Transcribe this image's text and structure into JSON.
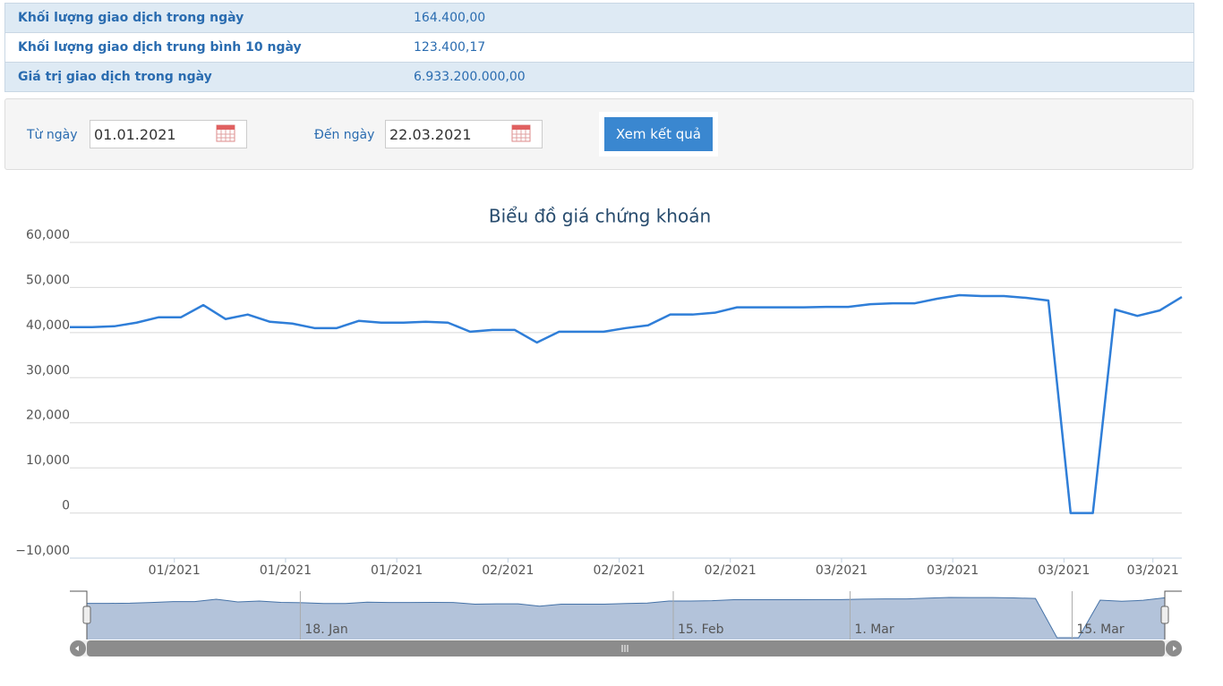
{
  "table": {
    "rows": [
      [
        "Khối lượng giao dịch trong ngày",
        "164.400,00"
      ],
      [
        "Khối lượng giao dịch trung bình 10 ngày",
        "123.400,17"
      ],
      [
        "Giá trị giao dịch trong ngày",
        "6.933.200.000,00"
      ]
    ]
  },
  "form": {
    "from_label": "Từ ngày",
    "from_value": "01.01.2021",
    "to_label": "Đến ngày",
    "to_value": "22.03.2021",
    "button": "Xem kết quả"
  },
  "chart_data": {
    "type": "line",
    "title": "Biểu đồ giá chứng khoán",
    "categories": [
      null,
      null,
      null,
      null,
      null,
      null,
      null,
      null,
      null,
      null,
      null,
      null,
      null,
      null,
      null,
      null,
      null,
      null,
      null,
      null,
      null,
      null,
      null,
      null,
      null,
      null,
      null,
      null,
      null,
      null,
      null,
      null,
      null,
      null,
      null,
      null,
      null,
      null,
      null,
      null,
      null,
      null,
      null,
      null,
      null,
      null,
      null,
      null,
      null,
      null,
      null
    ],
    "series": [
      {
        "color": "#2f7ed8",
        "values": [
          41200,
          41200,
          41400,
          42200,
          43400,
          43400,
          46100,
          43000,
          44000,
          42400,
          42000,
          41000,
          41000,
          42600,
          42200,
          42200,
          42400,
          42200,
          40200,
          40600,
          40600,
          37800,
          40200,
          40200,
          40200,
          41000,
          41600,
          44000,
          44000,
          44400,
          45600,
          45600,
          45600,
          45600,
          45700,
          45700,
          46300,
          46500,
          46500,
          47500,
          48300,
          48100,
          48100,
          47700,
          47100,
          0,
          0,
          45100,
          43700,
          44900,
          47900
        ]
      }
    ],
    "ylim": [
      -10000,
      60000
    ],
    "yticks": [
      {
        "value": -10000,
        "label": "−10,000"
      },
      0,
      {
        "value": 10000,
        "label": "10,000"
      },
      {
        "value": 20000,
        "label": "20,000"
      },
      {
        "value": 30000,
        "label": "30,000"
      },
      {
        "value": 40000,
        "label": "40,000"
      },
      {
        "value": 50000,
        "label": "50,000"
      },
      {
        "value": 60000,
        "label": "60,000"
      }
    ],
    "xticks": [
      {
        "value": 4.7,
        "label": "01/2021"
      },
      {
        "value": 9.7,
        "label": "01/2021"
      },
      {
        "value": 14.7,
        "label": "01/2021"
      },
      {
        "value": 19.7,
        "label": "02/2021"
      },
      {
        "value": 24.7,
        "label": "02/2021"
      },
      {
        "value": 29.7,
        "label": "02/2021"
      },
      {
        "value": 34.7,
        "label": "03/2021"
      },
      {
        "value": 39.7,
        "label": "03/2021"
      },
      {
        "value": 44.7,
        "label": "03/2021"
      },
      {
        "value": 48.7,
        "label": "03/2021"
      }
    ],
    "grid": true,
    "navigator": {
      "xticks": [
        {
          "value": 9.9,
          "label": "18. Jan"
        },
        {
          "value": 27.2,
          "label": "15. Feb"
        },
        {
          "value": 35.4,
          "label": "1. Mar"
        },
        {
          "value": 45.7,
          "label": "15. Mar"
        }
      ]
    }
  }
}
